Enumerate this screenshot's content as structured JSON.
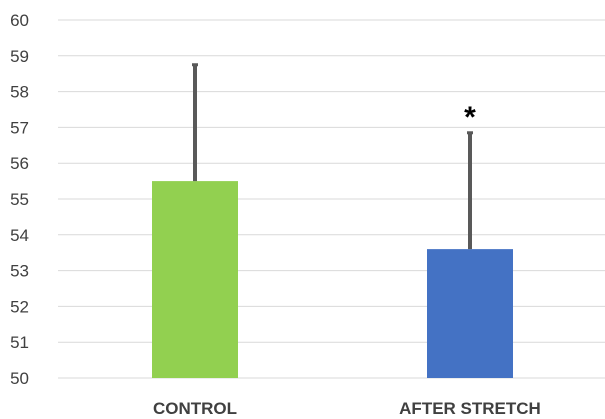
{
  "chart_data": {
    "type": "bar",
    "title": "",
    "xlabel": "",
    "ylabel": "",
    "categories": [
      "CONTROL",
      "AFTER STRETCH"
    ],
    "values": [
      55.5,
      53.6
    ],
    "error_upper": [
      58.75,
      56.85
    ],
    "ylim": [
      50,
      60
    ],
    "yticks": [
      50,
      51,
      52,
      53,
      54,
      55,
      56,
      57,
      58,
      59,
      60
    ],
    "ytick_labels": [
      "50",
      "51",
      "52",
      "53",
      "54",
      "55",
      "56",
      "57",
      "58",
      "59",
      "60"
    ],
    "colors": [
      "#92d050",
      "#4472c4"
    ],
    "error_bar_color": "#595959",
    "grid": true,
    "legend": "none",
    "annotations": [
      {
        "category_index": 1,
        "text": "*"
      }
    ]
  }
}
